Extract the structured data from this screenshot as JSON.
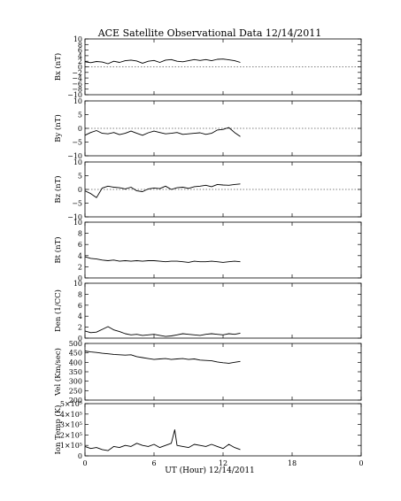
{
  "title": "ACE Satellite Observational Data   12/14/2011",
  "xlabel": "UT (Hour)   12/14/2011",
  "chart_data": [
    {
      "type": "line",
      "ylabel": "Bx (nT)",
      "ylim": [
        -10,
        10
      ],
      "yticks": [
        -10,
        -8,
        -6,
        -4,
        -2,
        0,
        2,
        4,
        6,
        8,
        10
      ],
      "ytick_labels": [
        "−10",
        "−8",
        "−6",
        "−4",
        "−2",
        "0",
        "2",
        "4",
        "6",
        "8",
        "10"
      ],
      "xlim": [
        0,
        24
      ],
      "xticks": [
        0,
        6,
        12,
        18,
        24
      ],
      "x": [
        0,
        0.5,
        1,
        1.5,
        2,
        2.5,
        3,
        3.5,
        4,
        4.5,
        5,
        5.5,
        6,
        6.5,
        7,
        7.5,
        8,
        8.5,
        9,
        9.5,
        10,
        10.5,
        11,
        11.5,
        12,
        12.5,
        13,
        13.5
      ],
      "values": [
        1.8,
        1.5,
        1.9,
        1.7,
        1.1,
        2.0,
        1.6,
        2.2,
        2.4,
        2.1,
        1.3,
        2.0,
        2.3,
        1.6,
        2.4,
        2.6,
        2.0,
        1.8,
        2.2,
        2.6,
        2.3,
        2.6,
        2.2,
        2.7,
        2.8,
        2.5,
        2.2,
        1.6
      ]
    },
    {
      "type": "line",
      "ylabel": "By (nT)",
      "ylim": [
        -10,
        10
      ],
      "yticks": [
        -10,
        -5,
        0,
        5,
        10
      ],
      "ytick_labels": [
        "−10",
        "−5",
        "0",
        "5",
        "10"
      ],
      "xlim": [
        0,
        24
      ],
      "xticks": [
        0,
        6,
        12,
        18,
        24
      ],
      "x": [
        0,
        0.5,
        1,
        1.5,
        2,
        2.5,
        3,
        3.5,
        4,
        4.5,
        5,
        5.5,
        6,
        6.5,
        7,
        7.5,
        8,
        8.5,
        9,
        9.5,
        10,
        10.5,
        11,
        11.5,
        12,
        12.5,
        13,
        13.5
      ],
      "values": [
        -2.5,
        -1.5,
        -0.8,
        -1.8,
        -2.0,
        -1.5,
        -2.3,
        -1.8,
        -1.0,
        -1.8,
        -2.5,
        -1.6,
        -1.0,
        -1.5,
        -2.0,
        -1.8,
        -1.5,
        -2.2,
        -2.0,
        -1.8,
        -1.6,
        -2.2,
        -1.8,
        -0.6,
        -0.4,
        0.3,
        -1.5,
        -3.0
      ]
    },
    {
      "type": "line",
      "ylabel": "Bz (nT)",
      "ylim": [
        -10,
        10
      ],
      "yticks": [
        -10,
        -5,
        0,
        5,
        10
      ],
      "ytick_labels": [
        "−10",
        "−5",
        "0",
        "5",
        "10"
      ],
      "xlim": [
        0,
        24
      ],
      "xticks": [
        0,
        6,
        12,
        18,
        24
      ],
      "x": [
        0,
        0.5,
        1,
        1.5,
        2,
        2.5,
        3,
        3.5,
        4,
        4.5,
        5,
        5.5,
        6,
        6.5,
        7,
        7.5,
        8,
        8.5,
        9,
        9.5,
        10,
        10.5,
        11,
        11.5,
        12,
        12.5,
        13,
        13.5
      ],
      "values": [
        -0.5,
        -1.5,
        -3.0,
        0.5,
        1.2,
        0.8,
        0.6,
        0.2,
        0.8,
        -0.5,
        -0.8,
        0.2,
        0.5,
        0.3,
        1.2,
        0.0,
        0.6,
        0.8,
        0.4,
        1.0,
        1.2,
        1.5,
        1.0,
        1.8,
        1.6,
        1.5,
        1.8,
        2.0
      ]
    },
    {
      "type": "line",
      "ylabel": "Bt (nT)",
      "ylim": [
        0,
        10
      ],
      "yticks": [
        0,
        2,
        4,
        6,
        8,
        10
      ],
      "ytick_labels": [
        "0",
        "2",
        "4",
        "6",
        "8",
        "10"
      ],
      "xlim": [
        0,
        24
      ],
      "xticks": [
        0,
        6,
        12,
        18,
        24
      ],
      "x": [
        0,
        0.5,
        1,
        1.5,
        2,
        2.5,
        3,
        3.5,
        4,
        4.5,
        5,
        5.5,
        6,
        6.5,
        7,
        7.5,
        8,
        8.5,
        9,
        9.5,
        10,
        10.5,
        11,
        11.5,
        12,
        12.5,
        13,
        13.5
      ],
      "values": [
        3.8,
        3.5,
        3.4,
        3.2,
        3.1,
        3.2,
        3.0,
        3.1,
        3.0,
        3.1,
        3.0,
        3.1,
        3.1,
        3.0,
        2.9,
        3.0,
        3.0,
        2.9,
        2.8,
        3.0,
        2.9,
        2.9,
        3.0,
        2.9,
        2.8,
        2.9,
        3.0,
        2.9
      ]
    },
    {
      "type": "line",
      "ylabel": "Den (1/CC)",
      "ylim": [
        0,
        10
      ],
      "yticks": [
        0,
        2,
        4,
        6,
        8,
        10
      ],
      "ytick_labels": [
        "0",
        "2",
        "4",
        "6",
        "8",
        "10"
      ],
      "xlim": [
        0,
        24
      ],
      "xticks": [
        0,
        6,
        12,
        18,
        24
      ],
      "x": [
        0,
        0.5,
        1,
        1.5,
        2,
        2.5,
        3,
        3.5,
        4,
        4.5,
        5,
        5.5,
        6,
        6.5,
        7,
        7.5,
        8,
        8.5,
        9,
        9.5,
        10,
        10.5,
        11,
        11.5,
        12,
        12.5,
        13,
        13.5
      ],
      "values": [
        1.3,
        1.0,
        1.1,
        1.6,
        2.1,
        1.5,
        1.2,
        0.8,
        0.6,
        0.7,
        0.5,
        0.6,
        0.7,
        0.5,
        0.3,
        0.4,
        0.6,
        0.8,
        0.7,
        0.6,
        0.5,
        0.7,
        0.8,
        0.7,
        0.6,
        0.8,
        0.7,
        0.9
      ]
    },
    {
      "type": "line",
      "ylabel": "Vel (Km/sec)",
      "ylim": [
        200,
        500
      ],
      "yticks": [
        200,
        250,
        300,
        350,
        400,
        450,
        500
      ],
      "ytick_labels": [
        "200",
        "250",
        "300",
        "350",
        "400",
        "450",
        "500"
      ],
      "xlim": [
        0,
        24
      ],
      "xticks": [
        0,
        6,
        12,
        18,
        24
      ],
      "x": [
        0,
        0.5,
        1,
        1.5,
        2,
        2.5,
        3,
        3.5,
        4,
        4.5,
        5,
        5.5,
        6,
        6.5,
        7,
        7.5,
        8,
        8.5,
        9,
        9.5,
        10,
        10.5,
        11,
        11.5,
        12,
        12.5,
        13,
        13.5
      ],
      "values": [
        460,
        455,
        452,
        448,
        445,
        442,
        440,
        438,
        440,
        430,
        425,
        420,
        415,
        418,
        420,
        415,
        418,
        420,
        415,
        418,
        412,
        410,
        408,
        402,
        398,
        395,
        400,
        405
      ]
    },
    {
      "type": "line",
      "ylabel": "Ion Temp (K)",
      "ylim": [
        0,
        500000
      ],
      "yticks": [
        0,
        100000,
        200000,
        300000,
        400000,
        500000
      ],
      "ytick_labels": [
        "0",
        "1×10⁵",
        "2×10⁵",
        "3×10⁵",
        "4×10⁵",
        "5×10⁵"
      ],
      "xlim": [
        0,
        24
      ],
      "xticks": [
        0,
        6,
        12,
        18,
        24
      ],
      "x": [
        0,
        0.5,
        1,
        1.5,
        2,
        2.5,
        3,
        3.5,
        4,
        4.5,
        5,
        5.5,
        6,
        6.5,
        7,
        7.5,
        7.8,
        8,
        8.5,
        9,
        9.5,
        10,
        10.5,
        11,
        11.5,
        12,
        12.5,
        13,
        13.5
      ],
      "values": [
        90000,
        70000,
        80000,
        60000,
        50000,
        90000,
        80000,
        100000,
        90000,
        120000,
        100000,
        90000,
        110000,
        80000,
        100000,
        120000,
        250000,
        100000,
        90000,
        80000,
        110000,
        100000,
        90000,
        110000,
        90000,
        70000,
        110000,
        80000,
        60000
      ]
    }
  ],
  "xtick_labels": [
    "0",
    "6",
    "12",
    "18",
    "0"
  ]
}
